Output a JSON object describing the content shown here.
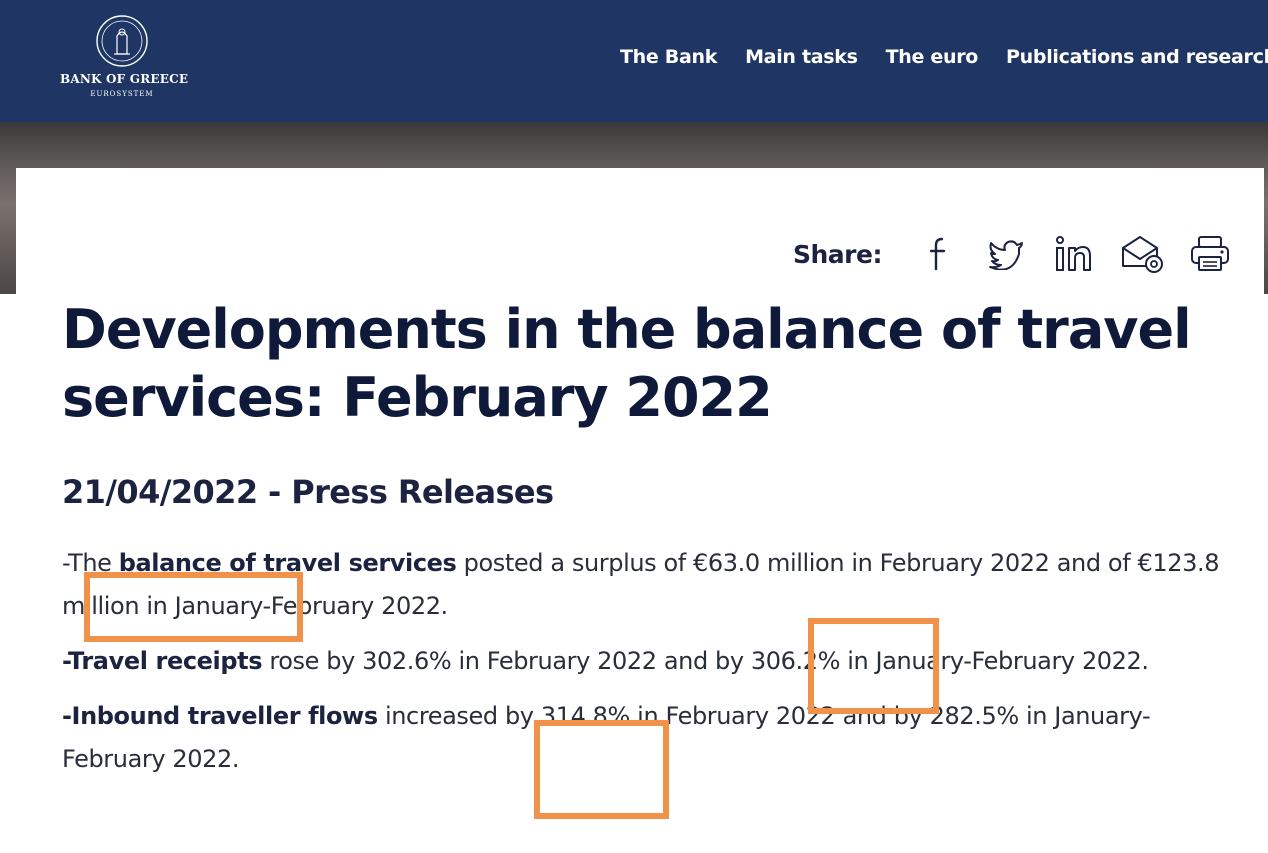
{
  "header": {
    "logo": {
      "name": "BANK OF GREECE",
      "subtitle": "EUROSYSTEM"
    },
    "nav": [
      "The Bank",
      "Main tasks",
      "The euro",
      "Publications and research"
    ]
  },
  "share": {
    "label": "Share:",
    "icons": [
      "facebook-icon",
      "twitter-icon",
      "linkedin-icon",
      "email-icon",
      "print-icon"
    ]
  },
  "article": {
    "title": "Developments in the balance of travel services: February 2022",
    "date_section": "21/04/2022 - Press Releases",
    "paragraphs": [
      {
        "bold": "balance of travel services",
        "prefix": "-The ",
        "text": " posted a surplus of €63.0 million in February 2022 and of €123.8 million in January-February 2022."
      },
      {
        "bold": "-Travel receipts",
        "prefix": "",
        "text": " rose by 302.6% in February 2022 and by 306.2% in January-February 2022."
      },
      {
        "bold": "-Inbound traveller flows",
        "prefix": "",
        "text": " increased by 314.8% in February 2022 and by 282.5% in January-February 2022."
      }
    ]
  },
  "colors": {
    "header_bg": "#1f3563",
    "text_dark": "#0f1a3a",
    "highlight": "#f0924a"
  }
}
